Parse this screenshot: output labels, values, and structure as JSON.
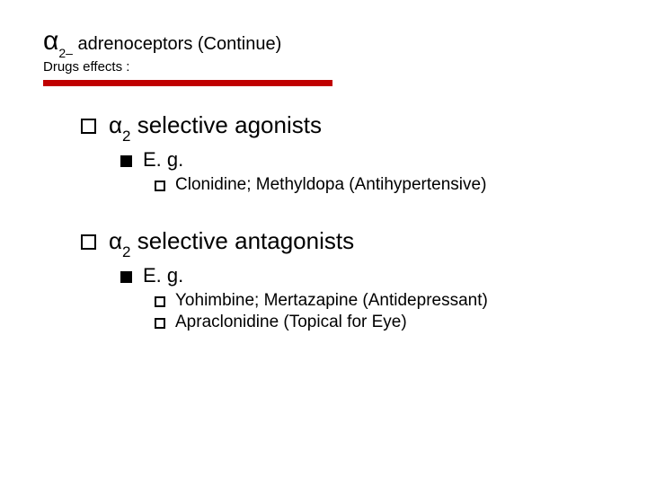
{
  "colors": {
    "rule": "#c00000",
    "text": "#000000",
    "background": "#ffffff"
  },
  "title": {
    "alpha": "α",
    "sub": "2–",
    "rest": " adrenoceptors (Continue)"
  },
  "subtitle": "Drugs effects :",
  "sections": [
    {
      "heading_prefix": "α",
      "heading_sub": "2",
      "heading_rest": " selective agonists",
      "eg_label": "E. g.",
      "items": [
        "Clonidine; Methyldopa (Antihypertensive)"
      ]
    },
    {
      "heading_prefix": "α",
      "heading_sub": "2",
      "heading_rest": " selective antagonists",
      "eg_label": "E. g.",
      "items": [
        "Yohimbine; Mertazapine (Antidepressant)",
        "Apraclonidine (Topical for Eye)"
      ]
    }
  ]
}
